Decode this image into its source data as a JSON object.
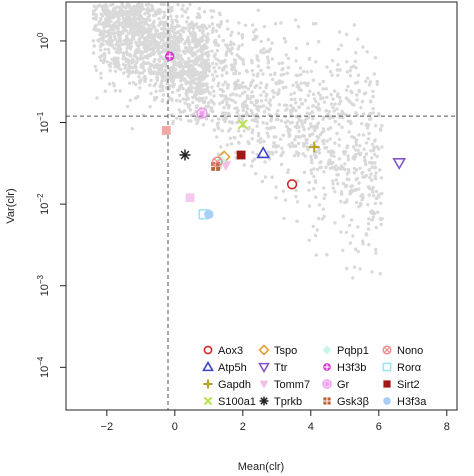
{
  "chart_data": {
    "type": "scatter",
    "title": "",
    "xlabel": "Mean(clr)",
    "ylabel": "Var(clr)",
    "x_scale": "linear",
    "y_scale": "log10",
    "xlim": [
      -3.2,
      8.3
    ],
    "ylim": [
      3e-05,
      3
    ],
    "x_ticks": [
      {
        "value": -2,
        "label": "−2"
      },
      {
        "value": 0,
        "label": "0"
      },
      {
        "value": 2,
        "label": "2"
      },
      {
        "value": 4,
        "label": "4"
      },
      {
        "value": 6,
        "label": "6"
      },
      {
        "value": 8,
        "label": "8"
      }
    ],
    "y_ticks": [
      {
        "value": 1,
        "base": "10",
        "exp": "0"
      },
      {
        "value": 0.1,
        "base": "10",
        "exp": "−1"
      },
      {
        "value": 0.01,
        "base": "10",
        "exp": "−2"
      },
      {
        "value": 0.001,
        "base": "10",
        "exp": "−3"
      },
      {
        "value": 0.0001,
        "base": "10",
        "exp": "−4"
      }
    ],
    "reference_lines": {
      "vertical_x": -0.2,
      "horizontal_y": 0.12
    },
    "background_cloud_color": "#d9d9d9",
    "legend_placement": "bottom-right",
    "series": [
      {
        "name": "Aox3",
        "marker": "circle-open",
        "color": "#d62728",
        "x": 3.45,
        "y": 0.0175
      },
      {
        "name": "Atp5h",
        "marker": "triangle-open",
        "color": "#3b44c8",
        "x": 2.6,
        "y": 0.042
      },
      {
        "name": "Gapdh",
        "marker": "plus",
        "color": "#b5a321",
        "x": 4.1,
        "y": 0.05
      },
      {
        "name": "S100a1",
        "marker": "cross",
        "color": "#b6e34a",
        "x": 2.0,
        "y": 0.095
      },
      {
        "name": "Tspo",
        "marker": "diamond-open",
        "color": "#e6a23c",
        "x": 1.45,
        "y": 0.038
      },
      {
        "name": "Ttr",
        "marker": "triangle-down-open",
        "color": "#8457c9",
        "x": 6.6,
        "y": 0.032
      },
      {
        "name": "Tomm7",
        "marker": "triangle-down",
        "color": "#f4bfe0",
        "x": 1.5,
        "y": 0.03
      },
      {
        "name": "Tprkb",
        "marker": "asterisk",
        "color": "#222222",
        "x": 0.3,
        "y": 0.04
      },
      {
        "name": "Pqbp1",
        "marker": "diamond",
        "color": "#c8f5ec",
        "x": 1.35,
        "y": 0.034
      },
      {
        "name": "H3f3b",
        "marker": "circle-plus",
        "color": "#d63ad3",
        "x": -0.15,
        "y": 0.65
      },
      {
        "name": "Gr",
        "marker": "circle-star",
        "color": "#ee99ee",
        "x": 0.8,
        "y": 0.13
      },
      {
        "name": "Gsk3β",
        "marker": "square-plus",
        "color": "#b7643a",
        "x": 1.2,
        "y": 0.029
      },
      {
        "name": "Nono",
        "marker": "circle-x",
        "color": "#ee8a8a",
        "x": 1.25,
        "y": 0.033
      },
      {
        "name": "Rorα",
        "marker": "square-open",
        "color": "#9fe2f4",
        "x": 0.85,
        "y": 0.0075
      },
      {
        "name": "Sirt2",
        "marker": "square",
        "color": "#a31616",
        "x": 1.95,
        "y": 0.04
      },
      {
        "name": "H3f3a",
        "marker": "circle-filled",
        "color": "#a8cff7",
        "x": 1.0,
        "y": 0.0075
      },
      {
        "name": "",
        "marker": "square",
        "color": "#f4a5a5",
        "x": -0.25,
        "y": 0.08
      },
      {
        "name": "",
        "marker": "square",
        "color": "#f6c9ef",
        "x": 0.45,
        "y": 0.012
      }
    ]
  }
}
